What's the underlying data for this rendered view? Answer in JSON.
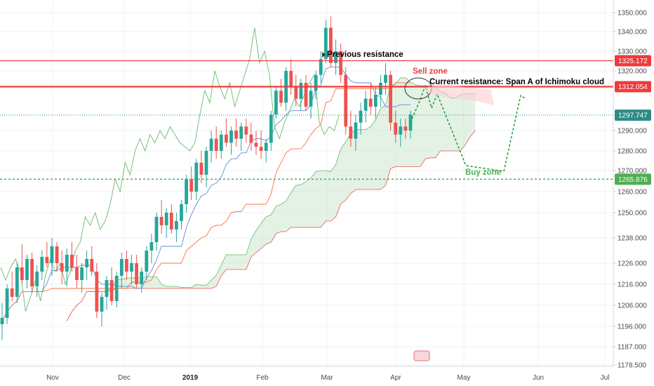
{
  "chart_data": {
    "type": "candlestick",
    "title": "",
    "xlabel": "",
    "ylabel": "",
    "grid": true,
    "ylim": [
      1175,
      1355
    ],
    "y_ticks": [
      "1350.000",
      "1340.000",
      "1330.000",
      "1320.000",
      "1290.000",
      "1280.000",
      "1270.000",
      "1260.000",
      "1250.000",
      "1238.000",
      "1226.000",
      "1216.000",
      "1206.000",
      "1196.000",
      "1187.000",
      "1178.500"
    ],
    "x_ticks": [
      {
        "label": "Nov",
        "bold": false
      },
      {
        "label": "Dec",
        "bold": false
      },
      {
        "label": "2019",
        "bold": true
      },
      {
        "label": "Feb",
        "bold": false
      },
      {
        "label": "Mar",
        "bold": false
      },
      {
        "label": "Apr",
        "bold": false
      },
      {
        "label": "May",
        "bold": false
      },
      {
        "label": "Jun",
        "bold": false
      },
      {
        "label": "Jul",
        "bold": false
      }
    ],
    "price_badges": [
      {
        "value": "1325.172",
        "color": "#ef3b3b"
      },
      {
        "value": "1312.054",
        "color": "#ef3b3b"
      },
      {
        "value": "1297.747",
        "color": "#2e8b87"
      },
      {
        "value": "1265.876",
        "color": "#4caf50"
      }
    ],
    "levels": [
      {
        "name": "previous_resistance",
        "value": 1325.172,
        "color": "#ef3b3b"
      },
      {
        "name": "current_resistance",
        "value": 1312.054,
        "color": "#ef3b3b"
      },
      {
        "name": "last_price",
        "value": 1297.747,
        "color": "#2e8b87"
      },
      {
        "name": "buy_level",
        "value": 1265.876,
        "color": "#4caf50"
      }
    ],
    "annotations": [
      {
        "text": "Previous resistance",
        "color": "#000000"
      },
      {
        "text": "Sell zone",
        "color": "#ef3b3b"
      },
      {
        "text": "Current resistance: Span A of Ichimoku cloud",
        "color": "#000000"
      },
      {
        "text": "Buy zone",
        "color": "#4caf50"
      }
    ],
    "candles": [
      [
        1197,
        1207,
        1190,
        1200
      ],
      [
        1200,
        1216,
        1197,
        1214
      ],
      [
        1214,
        1222,
        1208,
        1210
      ],
      [
        1210,
        1226,
        1207,
        1224
      ],
      [
        1224,
        1235,
        1216,
        1218
      ],
      [
        1218,
        1230,
        1214,
        1228
      ],
      [
        1228,
        1231,
        1212,
        1215
      ],
      [
        1215,
        1225,
        1210,
        1222
      ],
      [
        1222,
        1232,
        1218,
        1229
      ],
      [
        1229,
        1236,
        1224,
        1226
      ],
      [
        1226,
        1238,
        1220,
        1234
      ],
      [
        1234,
        1236,
        1222,
        1226
      ],
      [
        1226,
        1232,
        1216,
        1222
      ],
      [
        1222,
        1233,
        1215,
        1230
      ],
      [
        1230,
        1236,
        1222,
        1224
      ],
      [
        1224,
        1230,
        1214,
        1218
      ],
      [
        1218,
        1226,
        1212,
        1224
      ],
      [
        1224,
        1232,
        1218,
        1228
      ],
      [
        1228,
        1234,
        1220,
        1222
      ],
      [
        1222,
        1226,
        1200,
        1203
      ],
      [
        1203,
        1212,
        1196,
        1210
      ],
      [
        1210,
        1220,
        1204,
        1218
      ],
      [
        1218,
        1224,
        1206,
        1208
      ],
      [
        1208,
        1222,
        1205,
        1220
      ],
      [
        1220,
        1231,
        1214,
        1228
      ],
      [
        1228,
        1232,
        1218,
        1222
      ],
      [
        1222,
        1230,
        1216,
        1226
      ],
      [
        1226,
        1230,
        1214,
        1216
      ],
      [
        1216,
        1224,
        1212,
        1222
      ],
      [
        1222,
        1234,
        1218,
        1232
      ],
      [
        1232,
        1240,
        1226,
        1236
      ],
      [
        1236,
        1250,
        1232,
        1248
      ],
      [
        1248,
        1256,
        1240,
        1244
      ],
      [
        1244,
        1252,
        1238,
        1250
      ],
      [
        1250,
        1254,
        1240,
        1242
      ],
      [
        1242,
        1250,
        1236,
        1246
      ],
      [
        1246,
        1256,
        1242,
        1254
      ],
      [
        1254,
        1268,
        1250,
        1266
      ],
      [
        1266,
        1272,
        1256,
        1260
      ],
      [
        1260,
        1276,
        1256,
        1274
      ],
      [
        1274,
        1280,
        1264,
        1268
      ],
      [
        1268,
        1282,
        1262,
        1280
      ],
      [
        1280,
        1290,
        1274,
        1286
      ],
      [
        1286,
        1292,
        1276,
        1280
      ],
      [
        1280,
        1290,
        1276,
        1288
      ],
      [
        1288,
        1296,
        1282,
        1284
      ],
      [
        1284,
        1292,
        1278,
        1290
      ],
      [
        1290,
        1296,
        1282,
        1286
      ],
      [
        1286,
        1294,
        1280,
        1292
      ],
      [
        1292,
        1296,
        1284,
        1288
      ],
      [
        1288,
        1294,
        1280,
        1284
      ],
      [
        1284,
        1290,
        1278,
        1282
      ],
      [
        1282,
        1290,
        1276,
        1280
      ],
      [
        1280,
        1286,
        1274,
        1284
      ],
      [
        1284,
        1300,
        1280,
        1298
      ],
      [
        1298,
        1312,
        1296,
        1310
      ],
      [
        1310,
        1316,
        1302,
        1304
      ],
      [
        1304,
        1322,
        1300,
        1320
      ],
      [
        1320,
        1326,
        1308,
        1312
      ],
      [
        1312,
        1318,
        1302,
        1306
      ],
      [
        1306,
        1316,
        1300,
        1314
      ],
      [
        1314,
        1318,
        1300,
        1302
      ],
      [
        1302,
        1314,
        1296,
        1310
      ],
      [
        1310,
        1320,
        1306,
        1318
      ],
      [
        1318,
        1330,
        1314,
        1326
      ],
      [
        1326,
        1346,
        1324,
        1342
      ],
      [
        1342,
        1348,
        1322,
        1324
      ],
      [
        1324,
        1336,
        1318,
        1330
      ],
      [
        1330,
        1334,
        1314,
        1318
      ],
      [
        1318,
        1322,
        1288,
        1292
      ],
      [
        1292,
        1300,
        1282,
        1286
      ],
      [
        1286,
        1298,
        1280,
        1294
      ],
      [
        1294,
        1304,
        1288,
        1300
      ],
      [
        1300,
        1310,
        1294,
        1306
      ],
      [
        1306,
        1314,
        1298,
        1302
      ],
      [
        1302,
        1312,
        1296,
        1308
      ],
      [
        1308,
        1318,
        1302,
        1314
      ],
      [
        1314,
        1324,
        1308,
        1318
      ],
      [
        1318,
        1320,
        1290,
        1294
      ],
      [
        1294,
        1300,
        1284,
        1288
      ],
      [
        1288,
        1296,
        1282,
        1292
      ],
      [
        1292,
        1296,
        1286,
        1290
      ],
      [
        1290,
        1300,
        1286,
        1298
      ]
    ]
  }
}
